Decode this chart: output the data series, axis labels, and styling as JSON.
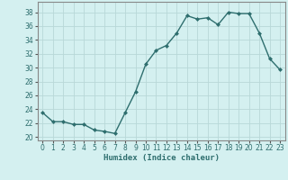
{
  "x": [
    0,
    1,
    2,
    3,
    4,
    5,
    6,
    7,
    8,
    9,
    10,
    11,
    12,
    13,
    14,
    15,
    16,
    17,
    18,
    19,
    20,
    21,
    22,
    23
  ],
  "y": [
    23.5,
    22.2,
    22.2,
    21.8,
    21.8,
    21.0,
    20.8,
    20.5,
    23.5,
    26.5,
    30.5,
    32.5,
    33.2,
    35.0,
    37.5,
    37.0,
    37.2,
    36.2,
    38.0,
    37.8,
    37.8,
    35.0,
    31.3,
    29.7
  ],
  "line_color": "#2e6e6e",
  "marker": "D",
  "markersize": 2.5,
  "linewidth": 1.0,
  "bg_color": "#d4f0f0",
  "grid_color": "#b8d8d8",
  "xlabel": "Humidex (Indice chaleur)",
  "xlim": [
    -0.5,
    23.5
  ],
  "ylim": [
    19.5,
    39.5
  ],
  "yticks": [
    20,
    22,
    24,
    26,
    28,
    30,
    32,
    34,
    36,
    38
  ],
  "xticks": [
    0,
    1,
    2,
    3,
    4,
    5,
    6,
    7,
    8,
    9,
    10,
    11,
    12,
    13,
    14,
    15,
    16,
    17,
    18,
    19,
    20,
    21,
    22,
    23
  ],
  "tick_fontsize": 5.5,
  "label_fontsize": 6.5
}
